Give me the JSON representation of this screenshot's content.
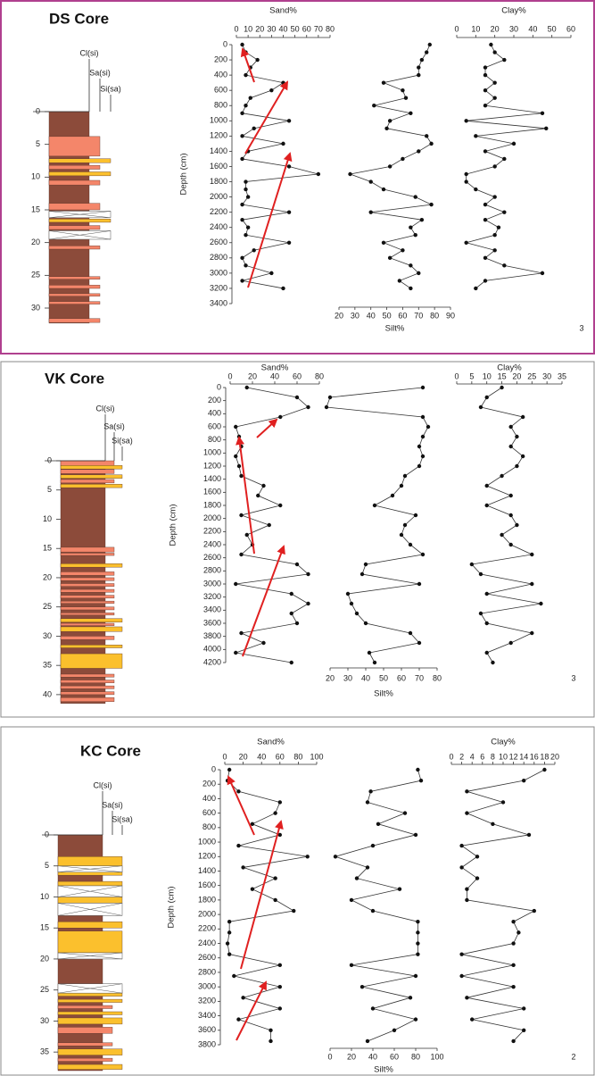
{
  "chart_data": [
    {
      "type": "depth-profile",
      "title": "DS Core",
      "depth_label": "Depth (cm)",
      "marker_color": "#111",
      "depth": [
        0,
        100,
        200,
        300,
        400,
        500,
        600,
        700,
        800,
        900,
        1000,
        1100,
        1200,
        1300,
        1400,
        1500,
        1600,
        1700,
        1800,
        1900,
        2000,
        2100,
        2200,
        2300,
        2400,
        2500,
        2600,
        2700,
        2800,
        2900,
        3000,
        3100,
        3200
      ],
      "ylim": [
        0,
        3400
      ],
      "yticks": [
        0,
        200,
        400,
        600,
        800,
        1000,
        1200,
        1400,
        1600,
        1800,
        2000,
        2200,
        2400,
        2600,
        2800,
        3000,
        3200,
        3400
      ],
      "log": {
        "labels": [
          "Cl(si)",
          "Sa(si)",
          "Si(sa)"
        ],
        "colors": [
          "#8c4b3a",
          "#f4866a",
          "#fbc02d"
        ],
        "ylim": [
          0,
          33
        ],
        "yticks": [
          0,
          5,
          10,
          15,
          20,
          25,
          30
        ],
        "layers": [
          [
            0,
            32.3,
            0
          ],
          [
            3.8,
            6.8,
            1
          ],
          [
            7.2,
            7.8,
            2
          ],
          [
            8.2,
            8.8,
            1
          ],
          [
            9.2,
            9.8,
            2
          ],
          [
            10.5,
            11.2,
            1
          ],
          [
            14,
            15,
            1
          ],
          [
            16.4,
            16.9,
            2
          ],
          [
            17.4,
            18,
            1
          ],
          [
            20.5,
            21,
            1
          ],
          [
            25.2,
            25.6,
            1
          ],
          [
            26.5,
            27,
            1
          ],
          [
            27.8,
            28.2,
            1
          ],
          [
            29,
            29.4,
            1
          ],
          [
            31.6,
            32.2,
            1
          ]
        ],
        "gaps": [
          [
            15.2,
            16.2
          ],
          [
            18.2,
            19.5
          ]
        ]
      },
      "series": [
        {
          "name": "Sand%",
          "axis": "top",
          "xlim": [
            0,
            80
          ],
          "xticks": [
            0,
            10,
            20,
            30,
            40,
            50,
            60,
            70,
            80
          ],
          "values": [
            5,
            8,
            18,
            12,
            8,
            40,
            30,
            12,
            8,
            5,
            45,
            15,
            5,
            40,
            10,
            5,
            45,
            70,
            8,
            8,
            10,
            5,
            45,
            5,
            10,
            8,
            45,
            15,
            5,
            8,
            30,
            5,
            40
          ]
        },
        {
          "name": "Silt%",
          "axis": "bottom",
          "xlim": [
            20,
            90
          ],
          "xticks": [
            20,
            30,
            40,
            50,
            60,
            70,
            80,
            90
          ],
          "values": [
            77,
            75,
            72,
            70,
            70,
            48,
            60,
            62,
            42,
            65,
            52,
            50,
            75,
            78,
            70,
            60,
            52,
            27,
            40,
            48,
            68,
            78,
            40,
            72,
            65,
            68,
            48,
            60,
            52,
            65,
            70,
            58,
            65
          ]
        },
        {
          "name": "Clay%",
          "axis": "top",
          "xlim": [
            0,
            60
          ],
          "xticks": [
            0,
            10,
            20,
            30,
            40,
            50,
            60
          ],
          "values": [
            18,
            20,
            25,
            15,
            15,
            20,
            15,
            20,
            15,
            45,
            5,
            47,
            10,
            30,
            15,
            25,
            20,
            5,
            5,
            10,
            20,
            15,
            25,
            15,
            22,
            20,
            5,
            20,
            15,
            25,
            45,
            15,
            10
          ]
        }
      ],
      "edge_label": 3
    },
    {
      "type": "depth-profile",
      "title": "VK Core",
      "depth_label": "Depth (cm)",
      "marker_color": "#111",
      "depth": [
        0,
        150,
        300,
        450,
        600,
        750,
        900,
        1050,
        1200,
        1350,
        1500,
        1650,
        1800,
        1950,
        2100,
        2250,
        2400,
        2550,
        2700,
        2850,
        3000,
        3150,
        3300,
        3450,
        3600,
        3750,
        3900,
        4050,
        4200
      ],
      "ylim": [
        0,
        4200
      ],
      "yticks": [
        0,
        200,
        400,
        600,
        800,
        1000,
        1200,
        1400,
        1600,
        1800,
        2000,
        2200,
        2400,
        2600,
        2800,
        3000,
        3200,
        3400,
        3600,
        3800,
        4000,
        4200
      ],
      "log": {
        "labels": [
          "Cl(si)",
          "Sa(si)",
          "Si(sa)"
        ],
        "colors": [
          "#8c4b3a",
          "#f4866a",
          "#fbc02d"
        ],
        "ylim": [
          0,
          42
        ],
        "yticks": [
          0,
          5,
          10,
          15,
          20,
          25,
          30,
          35,
          40
        ],
        "layers": [
          [
            0,
            41.5,
            0
          ],
          [
            0,
            0.8,
            1
          ],
          [
            0.8,
            1.4,
            2
          ],
          [
            1.5,
            2.2,
            1
          ],
          [
            2.4,
            3,
            2
          ],
          [
            3.2,
            3.8,
            1
          ],
          [
            4,
            4.6,
            2
          ],
          [
            14.8,
            15.6,
            1
          ],
          [
            15.8,
            16.2,
            1
          ],
          [
            17.6,
            18.2,
            2
          ],
          [
            19,
            19.6,
            1
          ],
          [
            20,
            20.5,
            1
          ],
          [
            21,
            21.5,
            1
          ],
          [
            22,
            22.5,
            1
          ],
          [
            23,
            23.5,
            1
          ],
          [
            24,
            24.4,
            1
          ],
          [
            25,
            25.5,
            1
          ],
          [
            26,
            26.4,
            1
          ],
          [
            27,
            27.6,
            2
          ],
          [
            27.8,
            28.2,
            1
          ],
          [
            28.4,
            29.2,
            2
          ],
          [
            30,
            30.6,
            1
          ],
          [
            31.5,
            32,
            2
          ],
          [
            33,
            35.5,
            2
          ],
          [
            36.5,
            37,
            1
          ],
          [
            37.5,
            38,
            1
          ],
          [
            38.5,
            39,
            1
          ],
          [
            39.5,
            40,
            1
          ],
          [
            40.5,
            41.2,
            1
          ]
        ],
        "gaps": []
      },
      "series": [
        {
          "name": "Sand%",
          "axis": "top",
          "xlim": [
            0,
            80
          ],
          "xticks": [
            0,
            20,
            40,
            60,
            80
          ],
          "values": [
            15,
            60,
            70,
            45,
            5,
            8,
            10,
            5,
            8,
            10,
            30,
            25,
            45,
            10,
            35,
            15,
            20,
            10,
            60,
            70,
            5,
            55,
            70,
            55,
            60,
            10,
            30,
            5,
            55
          ]
        },
        {
          "name": "Silt%",
          "axis": "bottom",
          "xlim": [
            20,
            80
          ],
          "xticks": [
            20,
            30,
            40,
            50,
            60,
            70,
            80
          ],
          "values": [
            72,
            20,
            18,
            72,
            75,
            72,
            70,
            72,
            70,
            62,
            60,
            55,
            45,
            68,
            62,
            60,
            65,
            72,
            40,
            38,
            70,
            30,
            32,
            35,
            40,
            65,
            70,
            42,
            45
          ]
        },
        {
          "name": "Clay%",
          "axis": "top",
          "xlim": [
            0,
            35
          ],
          "xticks": [
            0,
            5,
            10,
            15,
            20,
            25,
            30,
            35
          ],
          "values": [
            15,
            10,
            8,
            22,
            18,
            20,
            18,
            22,
            20,
            15,
            10,
            18,
            10,
            18,
            20,
            15,
            18,
            25,
            5,
            8,
            25,
            10,
            28,
            8,
            10,
            25,
            18,
            10,
            12
          ]
        }
      ],
      "edge_label": 3
    },
    {
      "type": "depth-profile",
      "title": "KC Core",
      "depth_label": "Depth (cm)",
      "marker_color": "#111",
      "depth": [
        0,
        150,
        300,
        450,
        600,
        750,
        900,
        1050,
        1200,
        1350,
        1500,
        1650,
        1800,
        1950,
        2100,
        2250,
        2400,
        2550,
        2700,
        2850,
        3000,
        3150,
        3300,
        3450,
        3600,
        3750
      ],
      "ylim": [
        0,
        3800
      ],
      "yticks": [
        0,
        200,
        400,
        600,
        800,
        1000,
        1200,
        1400,
        1600,
        1800,
        2000,
        2200,
        2400,
        2600,
        2800,
        3000,
        3200,
        3400,
        3600,
        3800
      ],
      "log": {
        "labels": [
          "Cl(si)",
          "Sa(si)",
          "Si(sa)"
        ],
        "colors": [
          "#8c4b3a",
          "#f4866a",
          "#fbc02d"
        ],
        "ylim": [
          0,
          38
        ],
        "yticks": [
          0,
          5,
          10,
          15,
          20,
          25,
          30,
          35
        ],
        "layers": [
          [
            0,
            38,
            0
          ],
          [
            3.5,
            6.5,
            2
          ],
          [
            7.5,
            8.2,
            2
          ],
          [
            8.5,
            9.5,
            1
          ],
          [
            10,
            11,
            2
          ],
          [
            14,
            15,
            2
          ],
          [
            15.5,
            19,
            2
          ],
          [
            25,
            26,
            2
          ],
          [
            26.5,
            27,
            2
          ],
          [
            27.5,
            28,
            1
          ],
          [
            28.5,
            29,
            2
          ],
          [
            29.5,
            30.5,
            2
          ],
          [
            31,
            32,
            1
          ],
          [
            33.5,
            34,
            1
          ],
          [
            34.5,
            35.5,
            2
          ],
          [
            36,
            36.5,
            1
          ],
          [
            37,
            37.8,
            2
          ]
        ],
        "gaps": [
          [
            5,
            6
          ],
          [
            8.2,
            10
          ],
          [
            11,
            13
          ],
          [
            19,
            20
          ],
          [
            24,
            25.5
          ]
        ]
      },
      "series": [
        {
          "name": "Sand%",
          "axis": "top",
          "xlim": [
            0,
            100
          ],
          "xticks": [
            0,
            20,
            40,
            60,
            80,
            100
          ],
          "values": [
            5,
            3,
            15,
            60,
            55,
            30,
            60,
            15,
            90,
            20,
            55,
            30,
            55,
            75,
            5,
            5,
            3,
            5,
            60,
            10,
            60,
            20,
            60,
            15,
            50,
            50
          ]
        },
        {
          "name": "Silt%",
          "axis": "bottom",
          "xlim": [
            0,
            100
          ],
          "xticks": [
            0,
            20,
            40,
            60,
            80,
            100
          ],
          "values": [
            82,
            85,
            38,
            35,
            70,
            45,
            80,
            40,
            5,
            35,
            25,
            65,
            20,
            40,
            82,
            82,
            82,
            82,
            20,
            80,
            30,
            75,
            40,
            80,
            60,
            35
          ]
        },
        {
          "name": "Clay%",
          "axis": "top",
          "xlim": [
            0,
            20
          ],
          "xticks": [
            0,
            2,
            4,
            6,
            8,
            10,
            12,
            14,
            16,
            18,
            20
          ],
          "values": [
            18,
            14,
            3,
            10,
            3,
            8,
            15,
            2,
            5,
            2,
            5,
            3,
            3,
            16,
            12,
            13,
            12,
            2,
            12,
            2,
            12,
            3,
            14,
            4,
            14,
            12
          ]
        }
      ],
      "edge_label": 2
    }
  ]
}
